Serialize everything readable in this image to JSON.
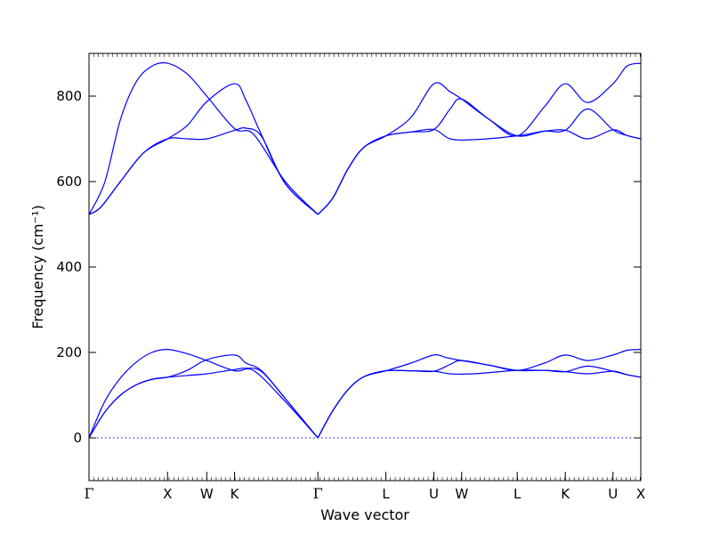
{
  "chart_data": {
    "type": "line",
    "xlabel": "Wave vector",
    "ylabel": "Frequency (cm⁻¹)",
    "ylim": [
      -100,
      900
    ],
    "yticks": [
      0,
      200,
      400,
      600,
      800
    ],
    "grid": false,
    "line_color": "#0000ff",
    "zero_line_color": "#0000ff",
    "high_symmetry_points": [
      {
        "label": "Γ",
        "x": 0.0
      },
      {
        "label": "X",
        "x": 1.0
      },
      {
        "label": "W",
        "x": 1.5
      },
      {
        "label": "K",
        "x": 1.854
      },
      {
        "label": "Γ",
        "x": 2.915
      },
      {
        "label": "L",
        "x": 3.781
      },
      {
        "label": "U",
        "x": 4.393
      },
      {
        "label": "W",
        "x": 4.747
      },
      {
        "label": "L",
        "x": 5.454
      },
      {
        "label": "K",
        "x": 6.067
      },
      {
        "label": "U",
        "x": 6.674
      },
      {
        "label": "X",
        "x": 7.028
      }
    ],
    "series": [
      {
        "points": [
          [
            0,
            0
          ],
          [
            0.2,
            85
          ],
          [
            0.4,
            140
          ],
          [
            0.6,
            177
          ],
          [
            0.8,
            200
          ],
          [
            1.0,
            207
          ],
          [
            1.25,
            197
          ],
          [
            1.5,
            181
          ],
          [
            1.854,
            157
          ],
          [
            2.1,
            157
          ],
          [
            2.5,
            85
          ],
          [
            2.915,
            0
          ]
        ]
      },
      {
        "points": [
          [
            0,
            0
          ],
          [
            0.2,
            60
          ],
          [
            0.4,
            100
          ],
          [
            0.6,
            124
          ],
          [
            0.8,
            137
          ],
          [
            1.0,
            142
          ],
          [
            1.25,
            158
          ],
          [
            1.5,
            183
          ],
          [
            1.854,
            194
          ],
          [
            2.0,
            175
          ],
          [
            2.2,
            157
          ],
          [
            2.5,
            92
          ],
          [
            2.915,
            0
          ]
        ]
      },
      {
        "points": [
          [
            0,
            0
          ],
          [
            0.2,
            60
          ],
          [
            0.4,
            100
          ],
          [
            0.6,
            124
          ],
          [
            0.8,
            137
          ],
          [
            1.0,
            142
          ],
          [
            1.25,
            146
          ],
          [
            1.5,
            150
          ],
          [
            1.854,
            160
          ],
          [
            2.0,
            163
          ],
          [
            2.2,
            155
          ],
          [
            2.5,
            92
          ],
          [
            2.915,
            0
          ]
        ]
      },
      {
        "points": [
          [
            2.915,
            0
          ],
          [
            3.1,
            62
          ],
          [
            3.3,
            113
          ],
          [
            3.5,
            143
          ],
          [
            3.781,
            157
          ],
          [
            4.1,
            157
          ],
          [
            4.393,
            156
          ],
          [
            4.6,
            150
          ],
          [
            4.9,
            150
          ],
          [
            5.454,
            158
          ],
          [
            5.8,
            158
          ],
          [
            6.067,
            155
          ],
          [
            6.35,
            150
          ],
          [
            6.674,
            156
          ],
          [
            6.85,
            148
          ],
          [
            7.028,
            142
          ]
        ]
      },
      {
        "points": [
          [
            2.915,
            0
          ],
          [
            3.1,
            62
          ],
          [
            3.3,
            113
          ],
          [
            3.5,
            143
          ],
          [
            3.781,
            157
          ],
          [
            4.1,
            175
          ],
          [
            4.393,
            194
          ],
          [
            4.55,
            188
          ],
          [
            4.747,
            181
          ],
          [
            5.1,
            170
          ],
          [
            5.454,
            158
          ],
          [
            5.8,
            175
          ],
          [
            6.067,
            194
          ],
          [
            6.35,
            181
          ],
          [
            6.674,
            194
          ],
          [
            6.85,
            205
          ],
          [
            7.028,
            207
          ]
        ]
      },
      {
        "points": [
          [
            2.915,
            0
          ],
          [
            3.1,
            62
          ],
          [
            3.3,
            113
          ],
          [
            3.5,
            143
          ],
          [
            3.781,
            157
          ],
          [
            4.1,
            157
          ],
          [
            4.393,
            156
          ],
          [
            4.6,
            172
          ],
          [
            4.747,
            181
          ],
          [
            5.1,
            170
          ],
          [
            5.454,
            158
          ],
          [
            5.8,
            158
          ],
          [
            6.067,
            155
          ],
          [
            6.35,
            168
          ],
          [
            6.674,
            156
          ],
          [
            6.85,
            148
          ],
          [
            7.028,
            142
          ]
        ]
      },
      {
        "points": [
          [
            0,
            523
          ],
          [
            0.2,
            598
          ],
          [
            0.4,
            745
          ],
          [
            0.6,
            833
          ],
          [
            0.8,
            870
          ],
          [
            1.0,
            877
          ],
          [
            1.25,
            852
          ],
          [
            1.5,
            800
          ],
          [
            1.854,
            724
          ],
          [
            2.1,
            710
          ],
          [
            2.5,
            600
          ],
          [
            2.915,
            523
          ]
        ]
      },
      {
        "points": [
          [
            0,
            523
          ],
          [
            0.15,
            540
          ],
          [
            0.4,
            600
          ],
          [
            0.7,
            668
          ],
          [
            1.0,
            700
          ],
          [
            1.25,
            731
          ],
          [
            1.5,
            787
          ],
          [
            1.854,
            829
          ],
          [
            2.0,
            790
          ],
          [
            2.2,
            708
          ],
          [
            2.5,
            595
          ],
          [
            2.915,
            523
          ]
        ]
      },
      {
        "points": [
          [
            0,
            523
          ],
          [
            0.15,
            540
          ],
          [
            0.4,
            600
          ],
          [
            0.7,
            668
          ],
          [
            1.0,
            700
          ],
          [
            1.25,
            700
          ],
          [
            1.5,
            700
          ],
          [
            1.854,
            720
          ],
          [
            2.0,
            725
          ],
          [
            2.2,
            705
          ],
          [
            2.5,
            595
          ],
          [
            2.915,
            523
          ]
        ]
      },
      {
        "points": [
          [
            2.915,
            523
          ],
          [
            3.1,
            560
          ],
          [
            3.3,
            630
          ],
          [
            3.5,
            680
          ],
          [
            3.781,
            707
          ],
          [
            4.1,
            716
          ],
          [
            4.393,
            722
          ],
          [
            4.6,
            700
          ],
          [
            4.9,
            698
          ],
          [
            5.454,
            707
          ],
          [
            5.8,
            718
          ],
          [
            6.067,
            720
          ],
          [
            6.35,
            700
          ],
          [
            6.674,
            721
          ],
          [
            6.85,
            708
          ],
          [
            7.028,
            700
          ]
        ]
      },
      {
        "points": [
          [
            2.915,
            523
          ],
          [
            3.1,
            560
          ],
          [
            3.3,
            630
          ],
          [
            3.5,
            680
          ],
          [
            3.781,
            707
          ],
          [
            4.1,
            750
          ],
          [
            4.393,
            829
          ],
          [
            4.6,
            810
          ],
          [
            4.747,
            793
          ],
          [
            5.1,
            745
          ],
          [
            5.454,
            707
          ],
          [
            5.8,
            775
          ],
          [
            6.067,
            829
          ],
          [
            6.35,
            785
          ],
          [
            6.674,
            829
          ],
          [
            6.85,
            870
          ],
          [
            7.028,
            877
          ]
        ]
      },
      {
        "points": [
          [
            2.915,
            523
          ],
          [
            3.1,
            560
          ],
          [
            3.3,
            630
          ],
          [
            3.5,
            680
          ],
          [
            3.781,
            707
          ],
          [
            4.1,
            716
          ],
          [
            4.393,
            722
          ],
          [
            4.6,
            770
          ],
          [
            4.747,
            793
          ],
          [
            5.1,
            745
          ],
          [
            5.454,
            707
          ],
          [
            5.8,
            718
          ],
          [
            6.067,
            720
          ],
          [
            6.35,
            770
          ],
          [
            6.674,
            721
          ],
          [
            6.85,
            708
          ],
          [
            7.028,
            700
          ]
        ]
      }
    ]
  }
}
